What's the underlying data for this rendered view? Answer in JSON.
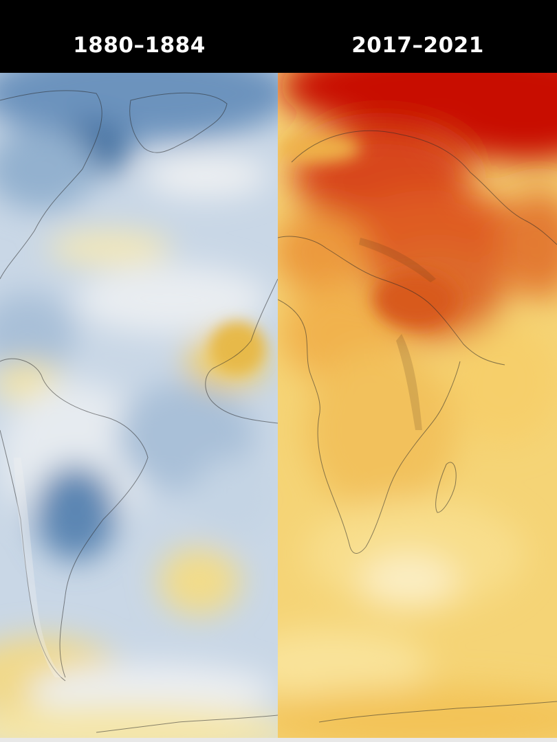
{
  "panels": {
    "left": {
      "period": "1880–1884",
      "dominant_tone": "cool",
      "colors": {
        "cold_dark": "#4f7fb0",
        "cold_light": "#b8cde2",
        "neutral": "#eef0f2",
        "warm_light": "#f3e19a"
      }
    },
    "right": {
      "period": "2017–2021",
      "dominant_tone": "warm",
      "colors": {
        "hot_dark": "#c80d03",
        "hot_mid": "#e2611f",
        "warm": "#f2bd53",
        "warm_light": "#f8df8e"
      }
    }
  }
}
